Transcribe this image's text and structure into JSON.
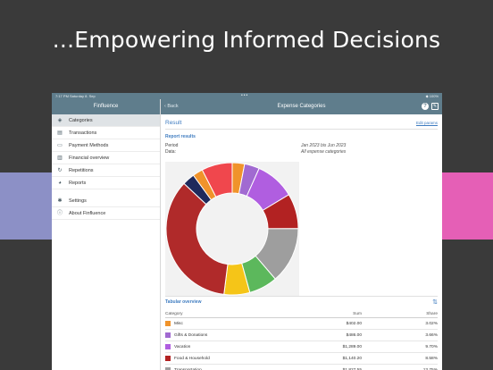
{
  "headline": "...Empowering Informed Decisions",
  "statusbar": {
    "time": "7:17 PM  Saturday 8. Sep",
    "dots": "•••",
    "battery": "◆ 100%"
  },
  "sidebar": {
    "title": "Finfluence",
    "items": [
      {
        "label": "Categories",
        "icon": "tag-icon",
        "glyph": "◈",
        "active": true
      },
      {
        "label": "Transactions",
        "icon": "list-icon",
        "glyph": "▤"
      },
      {
        "label": "Payment Methods",
        "icon": "card-icon",
        "glyph": "▭"
      },
      {
        "label": "Financial overview",
        "icon": "bar-chart-icon",
        "glyph": "▥"
      },
      {
        "label": "Repetitions",
        "icon": "repeat-icon",
        "glyph": "↻"
      },
      {
        "label": "Reports",
        "icon": "pie-chart-icon",
        "glyph": "◕"
      }
    ],
    "items2": [
      {
        "label": "Settings",
        "icon": "gear-icon",
        "glyph": "✱"
      },
      {
        "label": "About Finfluence",
        "icon": "info-icon",
        "glyph": "ⓘ"
      }
    ]
  },
  "navbar": {
    "back": "‹ Back",
    "title": "Expense Categories",
    "help": "?",
    "edit": "✎"
  },
  "result": {
    "title": "Result",
    "edit_params": "Edit params",
    "report_results": "Report results",
    "period_label": "Period",
    "period_value": "Jan 2023 bis Jun 2023",
    "data_label": "Data:",
    "data_value": "All expense categories"
  },
  "tabular": {
    "title": "Tabular overview",
    "sort_icon": "⇅",
    "headers": {
      "category": "Category",
      "sum": "Sum",
      "share": "Share"
    },
    "rows": [
      {
        "name": "Misc",
        "sum": "$402.00",
        "share": "3.02%",
        "color": "#f0932b"
      },
      {
        "name": "Gifts & Donations",
        "sum": "$486.00",
        "share": "3.66%",
        "color": "#a16ad1"
      },
      {
        "name": "Vacation",
        "sum": "$1,289.00",
        "share": "9.70%",
        "color": "#b05ee0"
      },
      {
        "name": "Food & Household",
        "sum": "$1,140.20",
        "share": "8.58%",
        "color": "#b22222"
      },
      {
        "name": "Transportation",
        "sum": "$1,827.55",
        "share": "13.75%",
        "color": "#9e9e9e"
      }
    ]
  },
  "chart_data": {
    "type": "pie",
    "donut": true,
    "slices": [
      {
        "value": 3.02,
        "color": "#f0932b"
      },
      {
        "value": 3.66,
        "color": "#a16ad1"
      },
      {
        "value": 9.7,
        "color": "#b05ee0"
      },
      {
        "value": 8.58,
        "color": "#b22222"
      },
      {
        "value": 13.75,
        "color": "#9e9e9e"
      },
      {
        "value": 7.0,
        "color": "#5cb85c"
      },
      {
        "value": 6.3,
        "color": "#f5c518"
      },
      {
        "value": 35.0,
        "color": "#b02a2a"
      },
      {
        "value": 3.0,
        "color": "#1f2a5c"
      },
      {
        "value": 2.5,
        "color": "#f0932b"
      },
      {
        "value": 7.5,
        "color": "#f0474d"
      }
    ]
  }
}
